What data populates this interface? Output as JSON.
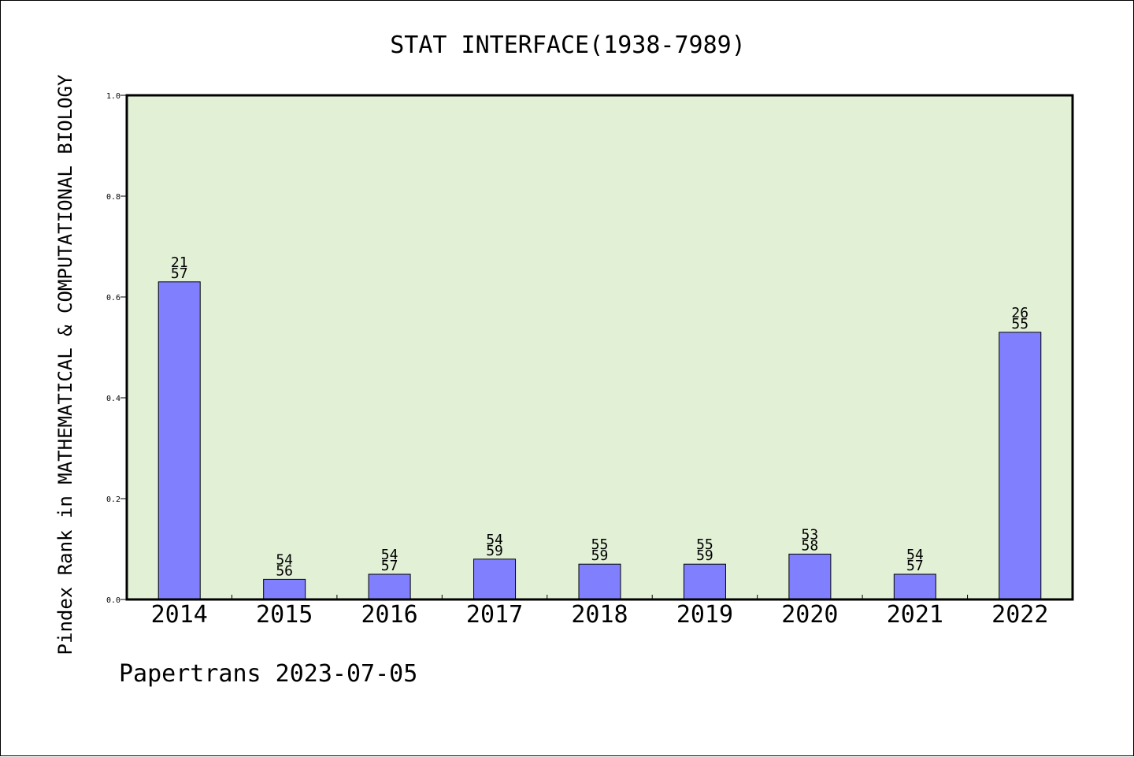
{
  "chart_data": {
    "type": "bar",
    "title": "STAT INTERFACE(1938-7989)",
    "ylabel": "Pindex Rank in MATHEMATICAL & COMPUTATIONAL BIOLOGY",
    "xlabel": "",
    "footer": "Papertrans 2023-07-05",
    "categories": [
      "2014",
      "2015",
      "2016",
      "2017",
      "2018",
      "2019",
      "2020",
      "2021",
      "2022"
    ],
    "values": [
      0.63,
      0.04,
      0.05,
      0.08,
      0.07,
      0.07,
      0.09,
      0.05,
      0.53
    ],
    "bar_labels_top": [
      "21",
      "54",
      "54",
      "54",
      "55",
      "55",
      "53",
      "54",
      "26"
    ],
    "bar_labels_bottom": [
      "57",
      "56",
      "57",
      "59",
      "59",
      "59",
      "58",
      "57",
      "55"
    ],
    "ylim": [
      0,
      1.0
    ],
    "yticks": [
      "0.0",
      "0.2",
      "0.4",
      "0.6",
      "0.8",
      "1.0"
    ],
    "grid": false,
    "legend": "none",
    "colors": {
      "bar": "#8080ff",
      "plot_background": "#e2f0d6",
      "axis": "#000000"
    }
  }
}
